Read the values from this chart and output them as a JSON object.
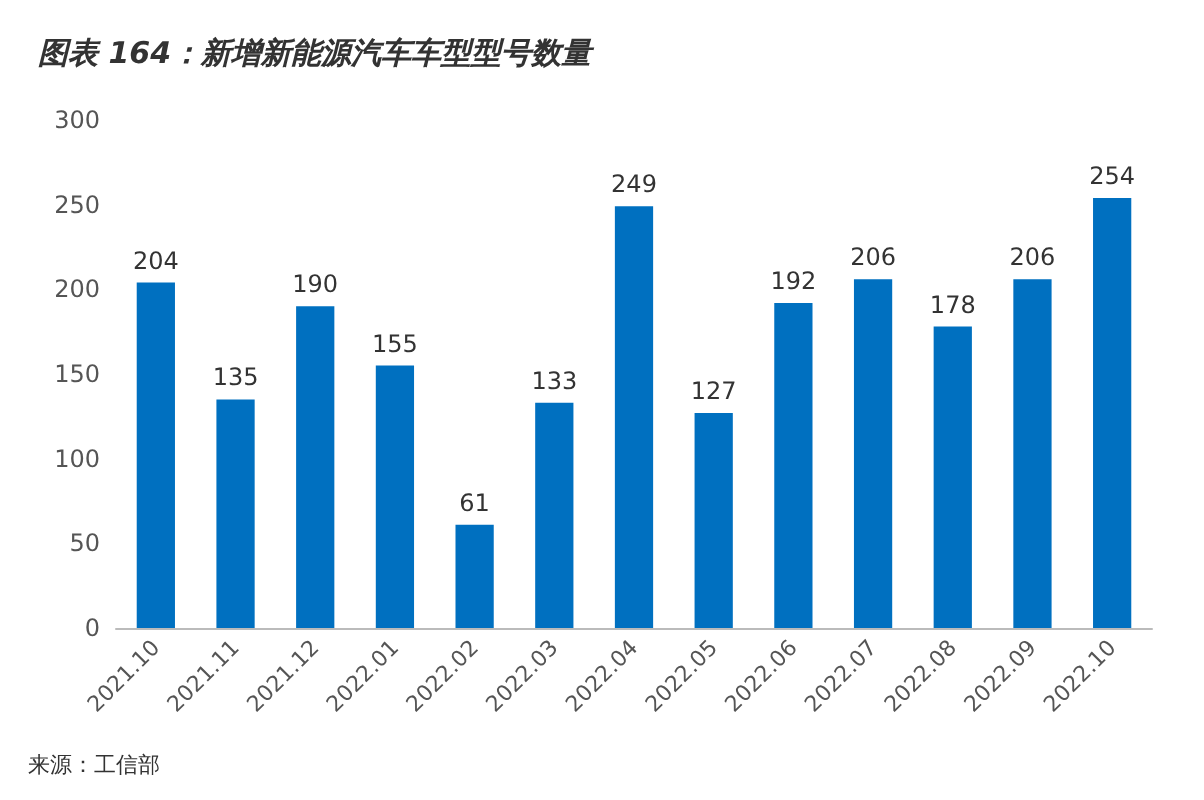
{
  "chart_data": {
    "type": "bar",
    "title": "图表 164：新增新能源汽车车型型号数量",
    "categories": [
      "2021.10",
      "2021.11",
      "2021.12",
      "2022.01",
      "2022.02",
      "2022.03",
      "2022.04",
      "2022.05",
      "2022.06",
      "2022.07",
      "2022.08",
      "2022.09",
      "2022.10"
    ],
    "values": [
      204,
      135,
      190,
      155,
      61,
      133,
      249,
      127,
      192,
      206,
      178,
      206,
      254
    ],
    "color": "#0070c0",
    "ylim": [
      0,
      300
    ],
    "yticks": [
      0,
      50,
      100,
      150,
      200,
      250,
      300
    ],
    "grid": false,
    "data_labels": true,
    "annotations": [
      "来源：工信部"
    ]
  }
}
